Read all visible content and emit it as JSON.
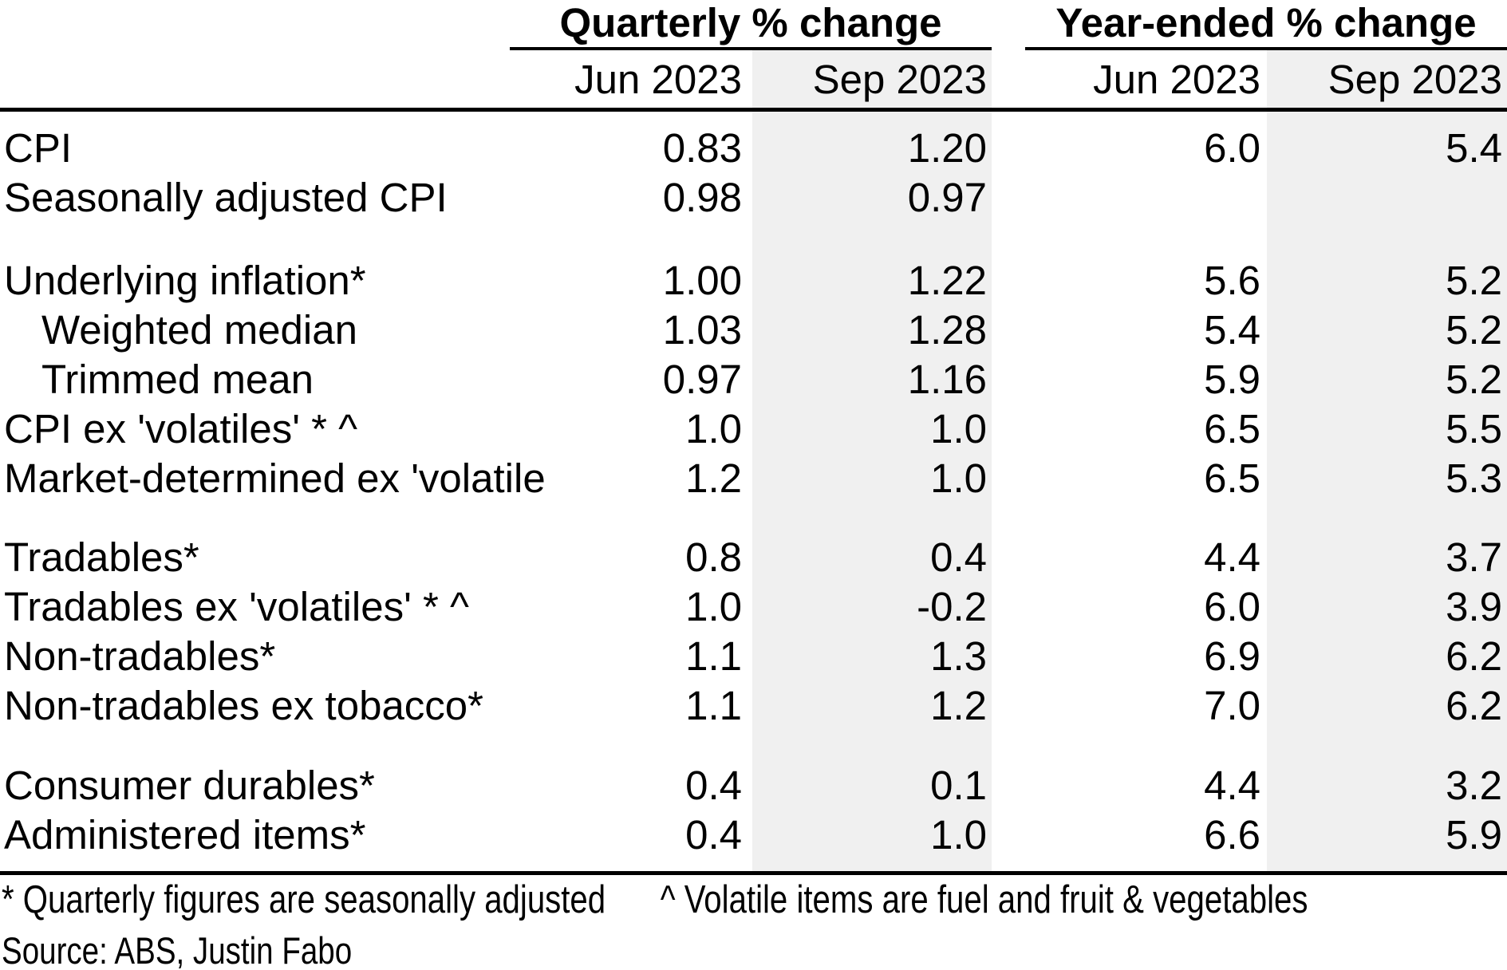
{
  "colors": {
    "background": "#ffffff",
    "text": "#000000",
    "band": "#f0f0f0",
    "rule": "#000000"
  },
  "header": {
    "groups": [
      {
        "label": "Quarterly % change"
      },
      {
        "label": "Year-ended % change"
      }
    ],
    "columns": [
      "Jun 2023",
      "Sep 2023",
      "Jun 2023",
      "Sep 2023"
    ]
  },
  "table": {
    "groups": [
      {
        "rows": [
          {
            "label": "CPI",
            "indent": false,
            "values": [
              "0.83",
              "1.20",
              "6.0",
              "5.4"
            ]
          },
          {
            "label": "Seasonally adjusted CPI",
            "indent": false,
            "values": [
              "0.98",
              "0.97",
              "",
              ""
            ]
          }
        ]
      },
      {
        "rows": [
          {
            "label": "Underlying inflation*",
            "indent": false,
            "values": [
              "1.00",
              "1.22",
              "5.6",
              "5.2"
            ]
          },
          {
            "label": "Weighted median",
            "indent": true,
            "values": [
              "1.03",
              "1.28",
              "5.4",
              "5.2"
            ]
          },
          {
            "label": "Trimmed mean",
            "indent": true,
            "values": [
              "0.97",
              "1.16",
              "5.9",
              "5.2"
            ]
          },
          {
            "label": "CPI ex 'volatiles' * ^",
            "indent": false,
            "values": [
              "1.0",
              "1.0",
              "6.5",
              "5.5"
            ]
          },
          {
            "label": "Market-determined ex 'volatile",
            "indent": false,
            "values": [
              "1.2",
              "1.0",
              "6.5",
              "5.3"
            ]
          }
        ]
      },
      {
        "rows": [
          {
            "label": "Tradables*",
            "indent": false,
            "values": [
              "0.8",
              "0.4",
              "4.4",
              "3.7"
            ]
          },
          {
            "label": "Tradables ex 'volatiles' * ^",
            "indent": false,
            "values": [
              "1.0",
              "-0.2",
              "6.0",
              "3.9"
            ]
          },
          {
            "label": "Non-tradables*",
            "indent": false,
            "values": [
              "1.1",
              "1.3",
              "6.9",
              "6.2"
            ]
          },
          {
            "label": "Non-tradables ex tobacco*",
            "indent": false,
            "values": [
              "1.1",
              "1.2",
              "7.0",
              "6.2"
            ]
          }
        ]
      },
      {
        "rows": [
          {
            "label": "Consumer durables*",
            "indent": false,
            "values": [
              "0.4",
              "0.1",
              "4.4",
              "3.2"
            ]
          },
          {
            "label": "Administered items*",
            "indent": false,
            "values": [
              "0.4",
              "1.0",
              "6.6",
              "5.9"
            ]
          }
        ]
      }
    ]
  },
  "footnotes": {
    "note1": "* Quarterly figures are seasonally adjusted",
    "note2": "^ Volatile items are fuel and fruit & vegetables"
  },
  "source": "Source: ABS, Justin Fabo",
  "chart_data": {
    "type": "table",
    "title": "",
    "column_groups": [
      {
        "label": "Quarterly % change",
        "columns": [
          "Jun 2023",
          "Sep 2023"
        ]
      },
      {
        "label": "Year-ended % change",
        "columns": [
          "Jun 2023",
          "Sep 2023"
        ]
      }
    ],
    "rows": [
      {
        "label": "CPI",
        "quarterly": [
          0.83,
          1.2
        ],
        "year_ended": [
          6.0,
          5.4
        ]
      },
      {
        "label": "Seasonally adjusted CPI",
        "quarterly": [
          0.98,
          0.97
        ],
        "year_ended": [
          null,
          null
        ]
      },
      {
        "label": "Underlying inflation*",
        "quarterly": [
          1.0,
          1.22
        ],
        "year_ended": [
          5.6,
          5.2
        ]
      },
      {
        "label": "Weighted median",
        "quarterly": [
          1.03,
          1.28
        ],
        "year_ended": [
          5.4,
          5.2
        ]
      },
      {
        "label": "Trimmed mean",
        "quarterly": [
          0.97,
          1.16
        ],
        "year_ended": [
          5.9,
          5.2
        ]
      },
      {
        "label": "CPI ex 'volatiles' * ^",
        "quarterly": [
          1.0,
          1.0
        ],
        "year_ended": [
          6.5,
          5.5
        ]
      },
      {
        "label": "Market-determined ex 'volatile",
        "quarterly": [
          1.2,
          1.0
        ],
        "year_ended": [
          6.5,
          5.3
        ]
      },
      {
        "label": "Tradables*",
        "quarterly": [
          0.8,
          0.4
        ],
        "year_ended": [
          4.4,
          3.7
        ]
      },
      {
        "label": "Tradables ex 'volatiles' * ^",
        "quarterly": [
          1.0,
          -0.2
        ],
        "year_ended": [
          6.0,
          3.9
        ]
      },
      {
        "label": "Non-tradables*",
        "quarterly": [
          1.1,
          1.3
        ],
        "year_ended": [
          6.9,
          6.2
        ]
      },
      {
        "label": "Non-tradables ex tobacco*",
        "quarterly": [
          1.1,
          1.2
        ],
        "year_ended": [
          7.0,
          6.2
        ]
      },
      {
        "label": "Consumer durables*",
        "quarterly": [
          0.4,
          0.1
        ],
        "year_ended": [
          4.4,
          3.2
        ]
      },
      {
        "label": "Administered items*",
        "quarterly": [
          0.4,
          1.0
        ],
        "year_ended": [
          6.6,
          5.9
        ]
      }
    ],
    "footnotes": [
      "* Quarterly figures are seasonally adjusted",
      "^ Volatile items are fuel and fruit & vegetables"
    ],
    "source": "Source: ABS, Justin Fabo"
  }
}
